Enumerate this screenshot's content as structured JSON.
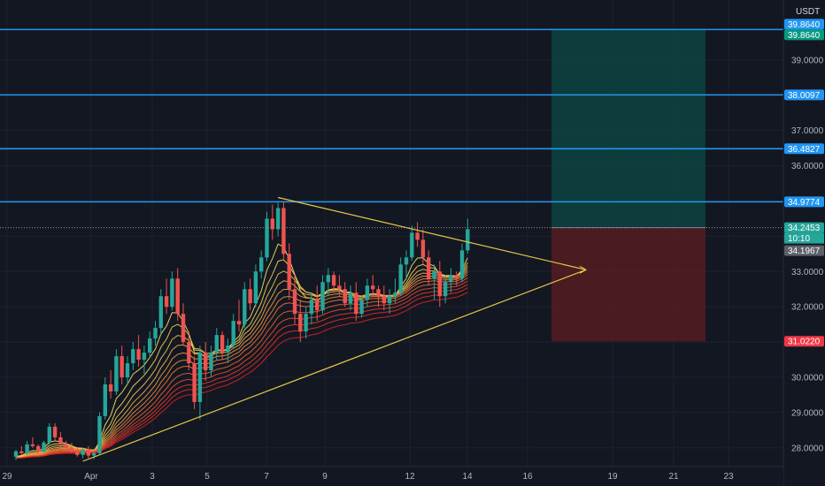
{
  "chart_data": {
    "type": "candlestick",
    "currency": "USDT",
    "ylim": [
      27.62,
      40.6
    ],
    "x_ticks": [
      "29",
      "Apr",
      "3",
      "5",
      "7",
      "9",
      "12",
      "14",
      "16",
      "19",
      "21",
      "23"
    ],
    "y_ticks": [
      "39.0000",
      "38.0000",
      "37.0000",
      "36.0000",
      "35.0000",
      "34.0000",
      "33.0000",
      "32.0000",
      "31.0000",
      "30.0000",
      "29.0000",
      "28.0000"
    ],
    "horizontal_lines": [
      {
        "value": 39.864,
        "label": "39.8640"
      },
      {
        "value": 38.0097,
        "label": "38.0097"
      },
      {
        "value": 36.4827,
        "label": "36.4827"
      },
      {
        "value": 34.9774,
        "label": "34.9774"
      }
    ],
    "price_badges": [
      {
        "value": 39.864,
        "label": "39.8640",
        "color": "#2196f3"
      },
      {
        "value": 39.864,
        "label": "39.8640",
        "color": "#089981"
      },
      {
        "value": 38.0097,
        "label": "38.0097",
        "color": "#2196f3"
      },
      {
        "value": 36.4827,
        "label": "36.4827",
        "color": "#2196f3"
      },
      {
        "value": 34.9774,
        "label": "34.9774",
        "color": "#2196f3"
      },
      {
        "value": 34.2453,
        "label": "34.2453",
        "color": "#26a69a"
      },
      {
        "value": 34.1967,
        "label": "34.1967",
        "color": "#5d606b"
      },
      {
        "value": 31.022,
        "label": "31.0220",
        "color": "#f23645"
      }
    ],
    "countdown": "10:10",
    "position": {
      "entry": 34.2453,
      "target": 39.864,
      "stop": 31.022
    },
    "triangle": {
      "top": 35.1,
      "apex": 33.05,
      "bottom": 27.62
    },
    "candles": [
      [
        27.75,
        27.95,
        27.65,
        27.9
      ],
      [
        27.9,
        28.05,
        27.8,
        27.85
      ],
      [
        27.85,
        28.2,
        27.8,
        28.1
      ],
      [
        28.1,
        28.3,
        28.0,
        28.05
      ],
      [
        28.05,
        28.1,
        27.85,
        27.9
      ],
      [
        27.9,
        28.2,
        27.85,
        28.15
      ],
      [
        28.15,
        28.7,
        28.1,
        28.6
      ],
      [
        28.6,
        28.7,
        28.2,
        28.3
      ],
      [
        28.3,
        28.45,
        28.0,
        28.1
      ],
      [
        28.1,
        28.2,
        27.9,
        28.0
      ],
      [
        28.0,
        28.15,
        27.85,
        27.9
      ],
      [
        27.9,
        28.0,
        27.75,
        27.8
      ],
      [
        27.8,
        28.0,
        27.7,
        27.95
      ],
      [
        27.95,
        28.05,
        27.7,
        27.78
      ],
      [
        27.78,
        27.9,
        27.68,
        27.85
      ],
      [
        27.85,
        29.0,
        27.8,
        28.9
      ],
      [
        28.9,
        30.0,
        28.8,
        29.8
      ],
      [
        29.8,
        30.2,
        29.4,
        29.6
      ],
      [
        29.6,
        30.8,
        29.5,
        30.6
      ],
      [
        30.6,
        30.9,
        29.8,
        30.0
      ],
      [
        30.0,
        30.6,
        29.8,
        30.4
      ],
      [
        30.4,
        31.0,
        30.2,
        30.8
      ],
      [
        30.8,
        31.2,
        30.3,
        30.5
      ],
      [
        30.5,
        30.9,
        30.1,
        30.7
      ],
      [
        30.7,
        31.3,
        30.6,
        31.1
      ],
      [
        31.1,
        31.6,
        30.9,
        31.4
      ],
      [
        31.4,
        32.5,
        31.2,
        32.3
      ],
      [
        32.3,
        32.8,
        31.8,
        32.0
      ],
      [
        32.0,
        33.0,
        31.9,
        32.8
      ],
      [
        32.8,
        33.1,
        31.6,
        31.8
      ],
      [
        31.8,
        32.1,
        30.9,
        31.0
      ],
      [
        31.0,
        31.3,
        30.2,
        30.4
      ],
      [
        30.4,
        30.6,
        29.1,
        29.3
      ],
      [
        29.3,
        30.9,
        28.8,
        30.7
      ],
      [
        30.7,
        31.0,
        29.9,
        30.2
      ],
      [
        30.2,
        30.9,
        30.0,
        30.7
      ],
      [
        30.7,
        31.4,
        30.5,
        31.2
      ],
      [
        31.2,
        31.3,
        30.5,
        30.7
      ],
      [
        30.7,
        31.1,
        30.4,
        30.9
      ],
      [
        30.9,
        31.8,
        30.8,
        31.6
      ],
      [
        31.6,
        32.2,
        31.3,
        31.5
      ],
      [
        31.5,
        32.7,
        31.4,
        32.5
      ],
      [
        32.5,
        32.8,
        31.9,
        32.1
      ],
      [
        32.1,
        33.2,
        32.0,
        33.0
      ],
      [
        33.0,
        33.6,
        32.8,
        33.4
      ],
      [
        33.4,
        34.7,
        33.3,
        34.5
      ],
      [
        34.5,
        34.9,
        33.9,
        34.2
      ],
      [
        34.2,
        34.95,
        34.0,
        34.8
      ],
      [
        34.8,
        35.0,
        33.3,
        33.5
      ],
      [
        33.5,
        33.8,
        32.2,
        32.5
      ],
      [
        32.5,
        32.9,
        31.5,
        31.8
      ],
      [
        31.8,
        32.2,
        31.0,
        31.3
      ],
      [
        31.3,
        32.0,
        31.1,
        31.8
      ],
      [
        31.8,
        32.4,
        31.5,
        32.2
      ],
      [
        32.2,
        32.6,
        31.6,
        31.9
      ],
      [
        31.9,
        32.9,
        31.8,
        32.7
      ],
      [
        32.7,
        33.1,
        32.3,
        32.9
      ],
      [
        32.9,
        33.0,
        32.4,
        32.6
      ],
      [
        32.6,
        32.9,
        32.3,
        32.5
      ],
      [
        32.5,
        32.7,
        32.0,
        32.1
      ],
      [
        32.1,
        32.6,
        31.9,
        32.4
      ],
      [
        32.4,
        32.7,
        31.6,
        31.8
      ],
      [
        31.8,
        32.3,
        31.7,
        32.2
      ],
      [
        32.2,
        32.8,
        32.0,
        32.6
      ],
      [
        32.6,
        32.9,
        32.3,
        32.5
      ],
      [
        32.5,
        32.6,
        32.0,
        32.3
      ],
      [
        32.3,
        32.6,
        31.9,
        32.1
      ],
      [
        32.1,
        32.5,
        31.8,
        32.3
      ],
      [
        32.3,
        32.8,
        32.1,
        32.4
      ],
      [
        32.4,
        33.4,
        32.3,
        33.2
      ],
      [
        33.2,
        33.6,
        32.8,
        33.4
      ],
      [
        33.4,
        34.3,
        33.3,
        34.1
      ],
      [
        34.1,
        34.4,
        33.7,
        33.9
      ],
      [
        33.9,
        34.2,
        33.2,
        33.4
      ],
      [
        33.4,
        33.6,
        32.6,
        32.8
      ],
      [
        32.8,
        33.2,
        32.2,
        33.0
      ],
      [
        33.0,
        33.3,
        32.0,
        32.3
      ],
      [
        32.3,
        32.9,
        32.1,
        32.7
      ],
      [
        32.7,
        33.1,
        32.4,
        32.9
      ],
      [
        32.9,
        33.0,
        32.6,
        32.8
      ],
      [
        32.8,
        33.8,
        32.7,
        33.6
      ],
      [
        33.6,
        34.5,
        33.5,
        34.2
      ]
    ]
  }
}
